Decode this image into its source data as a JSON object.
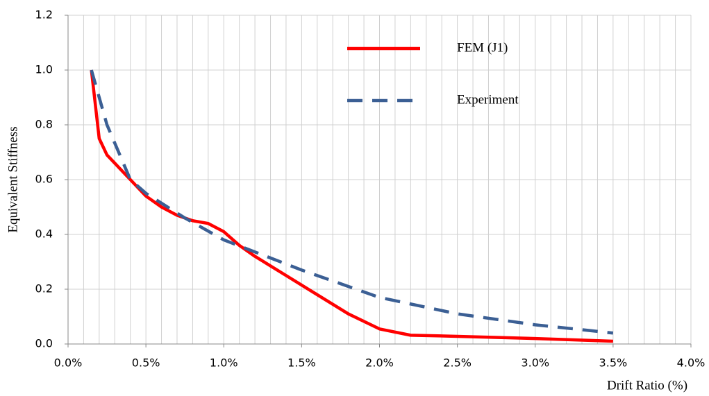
{
  "chart_data": {
    "type": "line",
    "xlabel": "Drift Ratio (%)",
    "ylabel": "Equivalent Stiffness",
    "xlim": [
      0,
      4
    ],
    "xticks": [
      {
        "value": 0,
        "label": "0.0%"
      },
      {
        "value": 0.5,
        "label": "0.5%"
      },
      {
        "value": 1,
        "label": "1.0%"
      },
      {
        "value": 1.5,
        "label": "1.5%"
      },
      {
        "value": 2,
        "label": "2.0%"
      },
      {
        "value": 2.5,
        "label": "2.5%"
      },
      {
        "value": 3,
        "label": "3.0%"
      },
      {
        "value": 3.5,
        "label": "3.5%"
      },
      {
        "value": 4,
        "label": "4.0%"
      }
    ],
    "xgrid": [
      0.1,
      0.2,
      0.3,
      0.4,
      0.6,
      0.7,
      0.8,
      0.9,
      1.1,
      1.2,
      1.3,
      1.4,
      1.6,
      1.7,
      1.8,
      1.9,
      2.1,
      2.2,
      2.3,
      2.4,
      2.6,
      2.7,
      2.8,
      2.9,
      3.1,
      3.2,
      3.3,
      3.4,
      3.6,
      3.7,
      3.8,
      3.9
    ],
    "ylim": [
      0,
      1.2
    ],
    "yticks": [
      {
        "value": 0,
        "label": "0.0"
      },
      0.2,
      0.4,
      0.6,
      0.8,
      {
        "value": 1,
        "label": "1.0"
      },
      1.2
    ],
    "grid": true,
    "legend": "upper right",
    "series": [
      {
        "name": "FEM (J1)",
        "color": "#ff0000",
        "linestyle": "solid",
        "x": [
          0.15,
          0.2,
          0.25,
          0.3,
          0.4,
          0.5,
          0.6,
          0.7,
          0.8,
          0.9,
          1.0,
          1.1,
          1.2,
          1.4,
          1.6,
          1.8,
          2.0,
          2.2,
          2.5,
          3.0,
          3.5
        ],
        "values": [
          1.0,
          0.75,
          0.69,
          0.66,
          0.6,
          0.54,
          0.5,
          0.47,
          0.45,
          0.44,
          0.41,
          0.36,
          0.32,
          0.25,
          0.18,
          0.11,
          0.055,
          0.032,
          0.028,
          0.02,
          0.01
        ]
      },
      {
        "name": "Experiment",
        "color": "#3b5f94",
        "linestyle": "dashed",
        "x": [
          0.15,
          0.25,
          0.4,
          0.5,
          0.75,
          1.0,
          1.5,
          2.0,
          2.5,
          3.0,
          3.5
        ],
        "values": [
          1.0,
          0.8,
          0.6,
          0.55,
          0.46,
          0.38,
          0.27,
          0.17,
          0.11,
          0.07,
          0.04
        ]
      }
    ]
  }
}
